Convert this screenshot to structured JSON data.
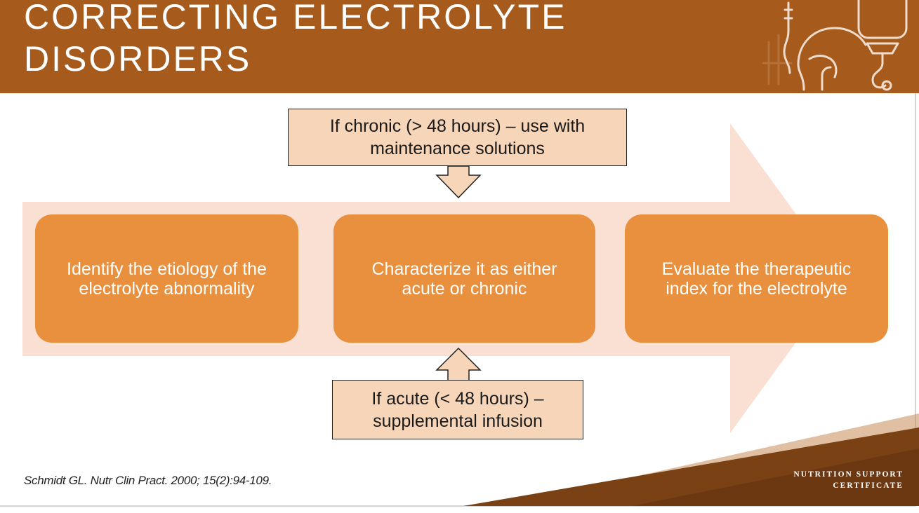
{
  "header": {
    "title": "CORRECTING ELECTROLYTE\nDISORDERS"
  },
  "icons": {
    "logo": "iv-drip-feeding-tube-icon"
  },
  "process": {
    "steps": [
      {
        "line1": "Identify the etiology of the",
        "line2": "electrolyte abnormality"
      },
      {
        "line1": "Characterize it as either",
        "line2": "acute or chronic"
      },
      {
        "line1": "Evaluate the therapeutic",
        "line2": "index for the electrolyte"
      }
    ],
    "chronic_note": {
      "line1": "If chronic (> 48 hours) – use with",
      "line2": "maintenance solutions"
    },
    "acute_note": {
      "line1": "If acute (< 48 hours) –",
      "line2": "supplemental infusion"
    }
  },
  "citation": "Schmidt GL. Nutr Clin Pract. 2000; 15(2):94-109.",
  "brand": {
    "line1": "NUTRITION SUPPORT",
    "line2": "CERTIFICATE"
  },
  "colors": {
    "header": "#a65a1c",
    "step": "#e8903e",
    "callout": "#f7d5b8",
    "arrow": "#f9e0d3"
  }
}
